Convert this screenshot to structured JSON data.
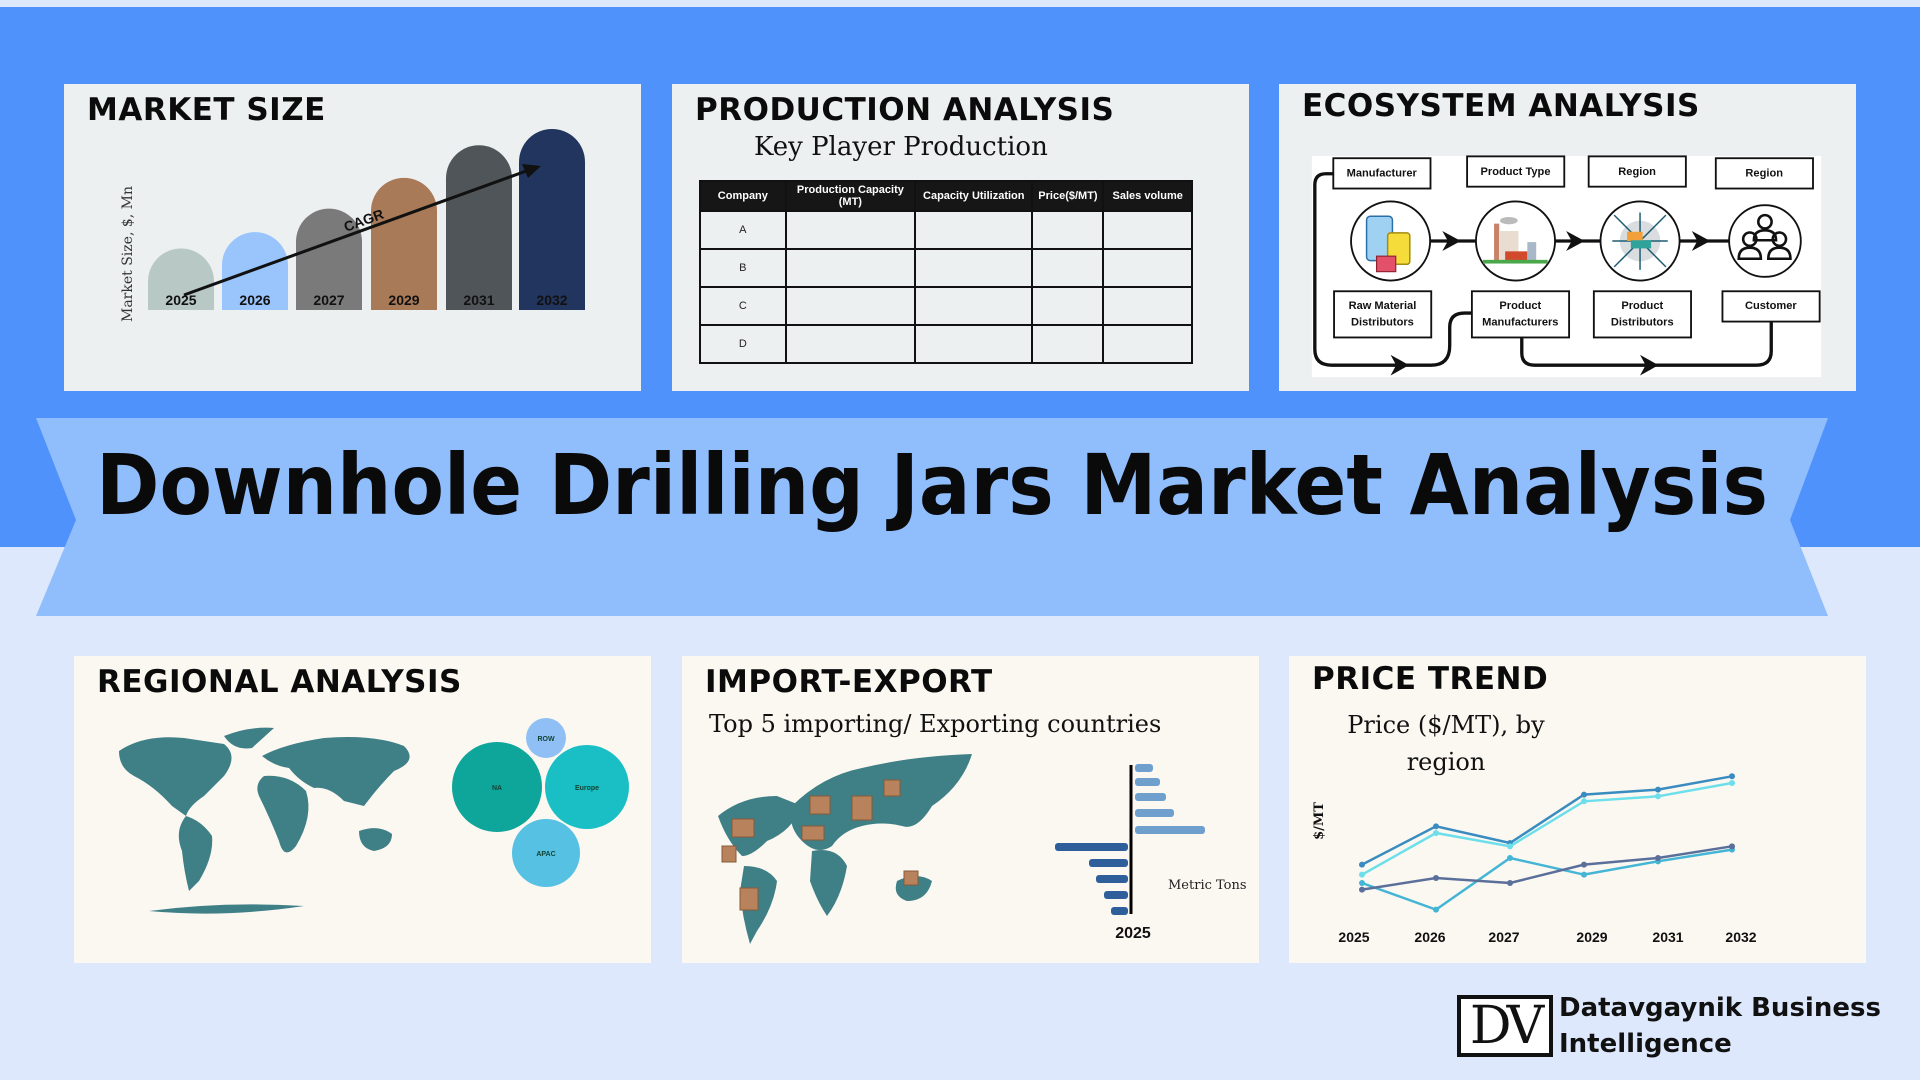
{
  "title": "Downhole Drilling Jars Market Analysis",
  "colors": {
    "top_band": "#4f92fb",
    "background": "#dde8fd",
    "banner": "#90bdfc",
    "map": "#3f7f86"
  },
  "market_size": {
    "title": "MARKET SIZE",
    "annotation": "CAGR",
    "chart_data": {
      "type": "bar",
      "categories": [
        "2025",
        "2026",
        "2027",
        "2029",
        "2031",
        "2032"
      ],
      "values": [
        34,
        43,
        56,
        73,
        91,
        100
      ],
      "colors": [
        "#b8c8c4",
        "#99c4fc",
        "#7a7a7a",
        "#a87a58",
        "#4f5558",
        "#22355e"
      ],
      "ylabel": "Market Size, $, Mn",
      "xlabel": ""
    }
  },
  "production": {
    "title": "PRODUCTION ANALYSIS",
    "subtitle": "Key Player Production",
    "headers": [
      "Company",
      "Production Capacity (MT)",
      "Capacity Utilization",
      "Price($/MT)",
      "Sales volume"
    ],
    "rows": [
      [
        "A",
        "",
        "",
        "",
        ""
      ],
      [
        "B",
        "",
        "",
        "",
        ""
      ],
      [
        "C",
        "",
        "",
        "",
        ""
      ],
      [
        "D",
        "",
        "",
        "",
        ""
      ]
    ]
  },
  "ecosystem": {
    "title": "ECOSYSTEM ANALYSIS",
    "top_labels": [
      "Manufacturer",
      "Product Type",
      "Region",
      "Region"
    ],
    "bottom_labels": [
      [
        "Raw Material",
        "Distributors"
      ],
      [
        "Product",
        "Manufacturers"
      ],
      [
        "Product",
        "Distributors"
      ],
      [
        "Customer"
      ]
    ],
    "icons": [
      "raw-material-drums-icon",
      "factory-icon",
      "distribution-network-icon",
      "customers-group-icon"
    ]
  },
  "regional": {
    "title": "REGIONAL ANALYSIS",
    "bubbles": [
      {
        "label": "NA",
        "color": "#0ea59a"
      },
      {
        "label": "Europe",
        "color": "#19bfc4"
      },
      {
        "label": "ROW",
        "color": "#8fbff5"
      },
      {
        "label": "APAC",
        "color": "#56c1e2"
      }
    ]
  },
  "import_export": {
    "title": "IMPORT-EXPORT",
    "subtitle": "Top 5 importing/ Exporting countries",
    "chart_data": {
      "type": "bar",
      "orientation": "horizontal-diverging",
      "category": "2025",
      "unit_label": "Metric Tons",
      "series": [
        {
          "values": [
            18,
            25,
            31,
            39,
            70
          ],
          "color": "#6f9fcc"
        },
        {
          "values": [
            73,
            39,
            32,
            24,
            17
          ],
          "color": "#2e5f9a"
        }
      ]
    }
  },
  "price_trend": {
    "title": "PRICE TREND",
    "chart_data": {
      "type": "line",
      "title_lines": [
        "Price ($/MT), by",
        "region"
      ],
      "ylabel": "$/MT",
      "categories": [
        "2025",
        "2026",
        "2027",
        "2029",
        "2031",
        "2032"
      ],
      "series": [
        {
          "values": [
            35,
            58,
            48,
            77,
            80,
            88
          ],
          "color": "#3a8cc0"
        },
        {
          "values": [
            29,
            54,
            46,
            73,
            76,
            84
          ],
          "color": "#6ddfea"
        },
        {
          "values": [
            24,
            8,
            39,
            29,
            37,
            44
          ],
          "color": "#45b5d5"
        },
        {
          "values": [
            20,
            27,
            24,
            35,
            39,
            46
          ],
          "color": "#5a6f9a"
        }
      ]
    }
  },
  "logo": {
    "mark": "DV",
    "line1": "Datavgaynik Business",
    "line2": "Intelligence"
  }
}
